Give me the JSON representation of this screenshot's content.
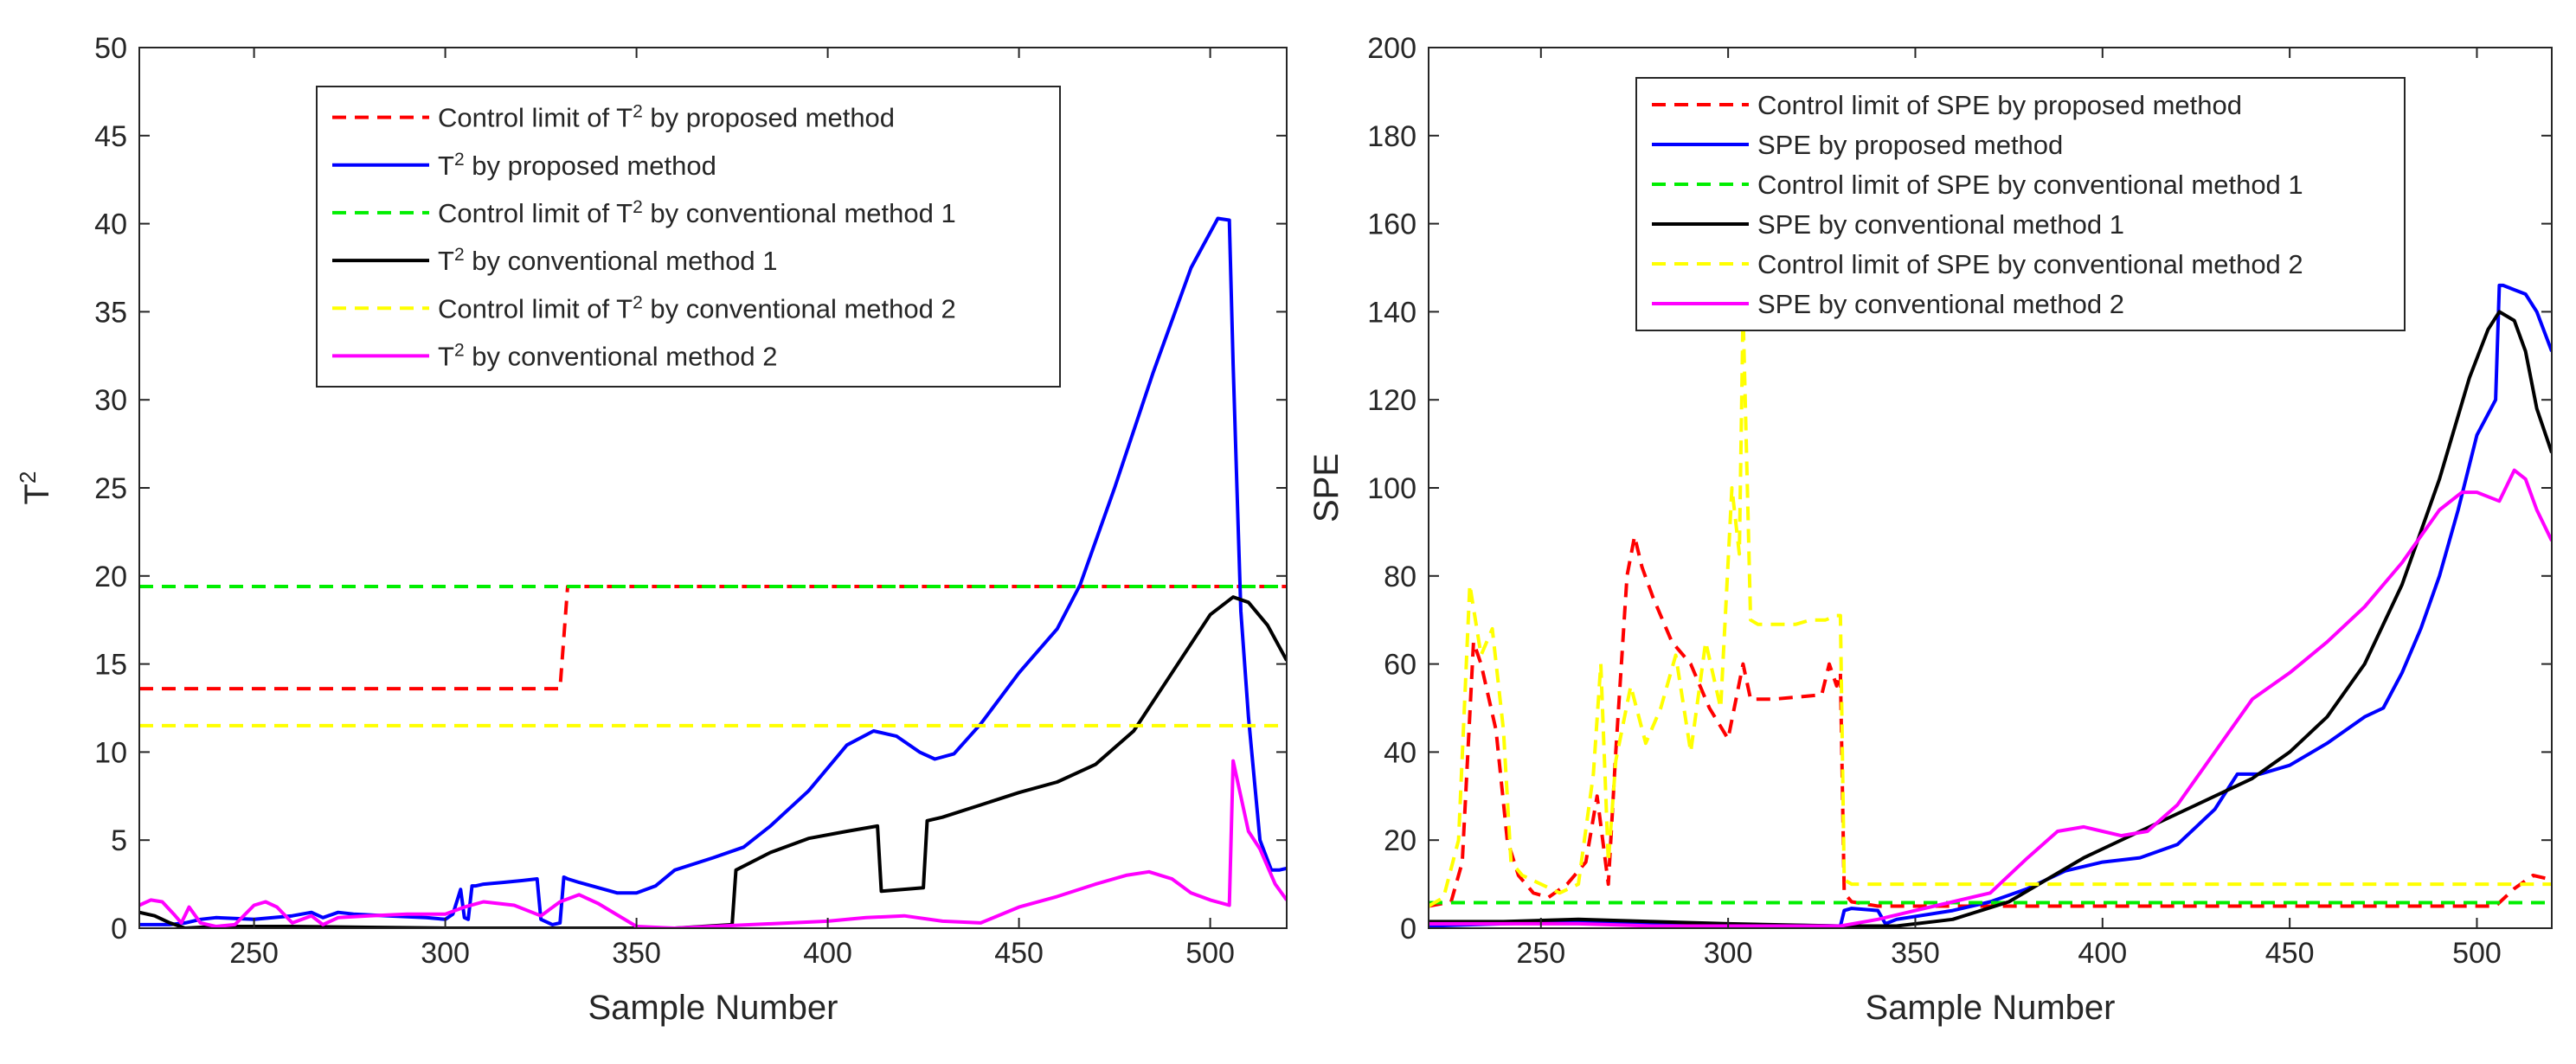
{
  "chart_data": [
    {
      "type": "line",
      "xlabel": "Sample Number",
      "ylabel": "T",
      "ylabel_sup": "2",
      "xlim": [
        220,
        520
      ],
      "ylim": [
        0,
        50
      ],
      "xticks": [
        250,
        300,
        350,
        400,
        450,
        500
      ],
      "yticks": [
        0,
        5,
        10,
        15,
        20,
        25,
        30,
        35,
        40,
        45,
        50
      ],
      "legend_position": "top-center",
      "series": [
        {
          "name": "Control limit of T^2 by proposed method",
          "label_pre": "Control limit of T",
          "label_sup": "2",
          "label_post": " by proposed method",
          "color": "#ff0000",
          "dash": true,
          "x": [
            220,
            330,
            332,
            520
          ],
          "y": [
            13.6,
            13.6,
            19.4,
            19.4
          ]
        },
        {
          "name": "T^2 by proposed method",
          "label_pre": "T",
          "label_sup": "2",
          "label_post": " by proposed method",
          "color": "#0000ff",
          "dash": false,
          "x": [
            220,
            228,
            232,
            236,
            240,
            250,
            260,
            265,
            268,
            272,
            276,
            285,
            295,
            300,
            302,
            304,
            305,
            306,
            307,
            308,
            310,
            315,
            320,
            324,
            325,
            328,
            330,
            331,
            332,
            335,
            340,
            345,
            350,
            355,
            360,
            370,
            378,
            385,
            395,
            405,
            412,
            418,
            424,
            428,
            433,
            440,
            450,
            460,
            466,
            475,
            485,
            495,
            502,
            505,
            506,
            507,
            508,
            510,
            513,
            516,
            518,
            520
          ],
          "y": [
            0.2,
            0.2,
            0.3,
            0.5,
            0.6,
            0.5,
            0.7,
            0.9,
            0.6,
            0.9,
            0.8,
            0.7,
            0.6,
            0.5,
            0.8,
            2.2,
            0.6,
            0.5,
            2.4,
            2.4,
            2.5,
            2.6,
            2.7,
            2.8,
            0.5,
            0.2,
            0.3,
            2.9,
            2.8,
            2.6,
            2.3,
            2.0,
            2.0,
            2.4,
            3.3,
            4.0,
            4.6,
            5.8,
            7.8,
            10.4,
            11.2,
            10.9,
            10.0,
            9.6,
            9.9,
            11.6,
            14.5,
            17.0,
            19.5,
            25.0,
            31.5,
            37.5,
            40.3,
            40.2,
            32.0,
            25.0,
            18.0,
            12.0,
            5.0,
            3.3,
            3.3,
            3.4
          ]
        },
        {
          "name": "Control limit of T^2 by conventional method 1",
          "label_pre": "Control limit of T",
          "label_sup": "2",
          "label_post": " by conventional method 1",
          "color": "#00ee00",
          "dash": true,
          "x": [
            220,
            520
          ],
          "y": [
            19.4,
            19.4
          ]
        },
        {
          "name": "T^2 by conventional method 1",
          "label_pre": "T",
          "label_sup": "2",
          "label_post": " by conventional method 1",
          "color": "#000000",
          "dash": false,
          "x": [
            220,
            224,
            228,
            232,
            236,
            240,
            260,
            280,
            300,
            330,
            360,
            375,
            376,
            385,
            395,
            405,
            413,
            414,
            425,
            426,
            430,
            440,
            450,
            460,
            470,
            480,
            490,
            500,
            506,
            510,
            515,
            520
          ],
          "y": [
            0.9,
            0.7,
            0.3,
            0.0,
            0.05,
            0.1,
            0.1,
            0.05,
            0.0,
            0.0,
            0.0,
            0.2,
            3.3,
            4.3,
            5.1,
            5.5,
            5.8,
            2.1,
            2.3,
            6.1,
            6.3,
            7.0,
            7.7,
            8.3,
            9.3,
            11.2,
            14.5,
            17.8,
            18.8,
            18.5,
            17.2,
            15.2
          ]
        },
        {
          "name": "Control limit of T^2 by conventional method 2",
          "label_pre": "Control limit of T",
          "label_sup": "2",
          "label_post": " by conventional method 2",
          "color": "#ffff00",
          "dash": true,
          "x": [
            220,
            520
          ],
          "y": [
            11.5,
            11.5
          ]
        },
        {
          "name": "T^2 by conventional method 2",
          "label_pre": "T",
          "label_sup": "2",
          "label_post": " by conventional method 2",
          "color": "#ff00ff",
          "dash": false,
          "x": [
            220,
            223,
            226,
            229,
            231,
            233,
            236,
            240,
            245,
            250,
            253,
            256,
            260,
            265,
            268,
            272,
            280,
            290,
            300,
            305,
            310,
            318,
            325,
            330,
            335,
            340,
            350,
            360,
            380,
            400,
            410,
            420,
            430,
            440,
            450,
            460,
            470,
            478,
            484,
            490,
            495,
            500,
            505,
            506,
            507,
            510,
            513,
            517,
            520
          ],
          "y": [
            1.3,
            1.6,
            1.5,
            0.8,
            0.3,
            1.2,
            0.3,
            0.1,
            0.2,
            1.3,
            1.5,
            1.2,
            0.3,
            0.7,
            0.2,
            0.6,
            0.7,
            0.8,
            0.8,
            1.2,
            1.5,
            1.3,
            0.7,
            1.5,
            1.9,
            1.4,
            0.1,
            0.0,
            0.2,
            0.4,
            0.6,
            0.7,
            0.4,
            0.3,
            1.2,
            1.8,
            2.5,
            3.0,
            3.2,
            2.8,
            2.0,
            1.6,
            1.3,
            9.5,
            8.5,
            5.5,
            4.5,
            2.5,
            1.6
          ]
        }
      ]
    },
    {
      "type": "line",
      "xlabel": "Sample Number",
      "ylabel": "SPE",
      "ylabel_sup": "",
      "xlim": [
        220,
        520
      ],
      "ylim": [
        0,
        200
      ],
      "xticks": [
        250,
        300,
        350,
        400,
        450,
        500
      ],
      "yticks": [
        0,
        20,
        40,
        60,
        80,
        100,
        120,
        140,
        160,
        180,
        200
      ],
      "legend_position": "top-center",
      "series": [
        {
          "name": "Control limit of SPE by proposed method",
          "label_pre": "Control limit of SPE by proposed method",
          "label_sup": "",
          "label_post": "",
          "color": "#ff0000",
          "dash": true,
          "x": [
            220,
            226,
            229,
            232,
            234,
            238,
            241,
            244,
            248,
            252,
            257,
            262,
            265,
            268,
            270,
            273,
            275,
            277,
            280,
            285,
            290,
            295,
            300,
            304,
            306,
            308,
            312,
            325,
            327,
            329,
            330,
            331,
            333,
            340,
            360,
            400,
            450,
            505,
            510,
            515,
            520
          ],
          "y": [
            5,
            6,
            15,
            65,
            60,
            45,
            20,
            12,
            8,
            7,
            10,
            15,
            30,
            10,
            40,
            80,
            89,
            82,
            75,
            65,
            60,
            50,
            43,
            60,
            52,
            52,
            52,
            53,
            60,
            55,
            58,
            8,
            6,
            5,
            5,
            5,
            5,
            5,
            9,
            12,
            11
          ]
        },
        {
          "name": "SPE by proposed method",
          "label_pre": "SPE by proposed method",
          "label_sup": "",
          "label_post": "",
          "color": "#0000ff",
          "dash": false,
          "x": [
            220,
            240,
            260,
            280,
            300,
            320,
            330,
            331,
            333,
            340,
            342,
            345,
            360,
            370,
            380,
            390,
            400,
            410,
            420,
            430,
            436,
            442,
            450,
            460,
            470,
            475,
            480,
            485,
            490,
            495,
            500,
            505,
            506,
            507,
            510,
            513,
            516,
            520
          ],
          "y": [
            0.5,
            1,
            1.5,
            1,
            0.8,
            0.6,
            0.5,
            4,
            4.5,
            4,
            1,
            2,
            4,
            6,
            9,
            13,
            15,
            16,
            19,
            27,
            35,
            35,
            37,
            42,
            48,
            50,
            58,
            68,
            80,
            95,
            112,
            120,
            146,
            146,
            145,
            144,
            140,
            131
          ]
        },
        {
          "name": "Control limit of SPE by conventional method 1",
          "label_pre": "Control limit of SPE by conventional method 1",
          "label_sup": "",
          "label_post": "",
          "color": "#00ee00",
          "dash": true,
          "x": [
            220,
            520
          ],
          "y": [
            5.8,
            5.8
          ]
        },
        {
          "name": "SPE by conventional method 1",
          "label_pre": "SPE by conventional method 1",
          "label_sup": "",
          "label_post": "",
          "color": "#000000",
          "dash": false,
          "x": [
            220,
            240,
            260,
            280,
            300,
            330,
            345,
            360,
            375,
            385,
            395,
            410,
            425,
            440,
            450,
            460,
            470,
            480,
            490,
            498,
            503,
            506,
            510,
            513,
            516,
            520
          ],
          "y": [
            1.5,
            1.5,
            2,
            1.5,
            1,
            0.5,
            0.5,
            2,
            6,
            11,
            16,
            22,
            28,
            34,
            40,
            48,
            60,
            78,
            102,
            125,
            136,
            140,
            138,
            131,
            118,
            108
          ]
        },
        {
          "name": "Control limit of SPE by conventional method 2",
          "label_pre": "Control limit of SPE by conventional method 2",
          "label_sup": "",
          "label_post": "",
          "color": "#ffff00",
          "dash": true,
          "x": [
            220,
            224,
            228,
            231,
            234,
            237,
            240,
            242,
            245,
            250,
            255,
            260,
            264,
            266,
            268,
            270,
            274,
            278,
            282,
            286,
            290,
            294,
            298,
            301,
            303,
            304,
            306,
            308,
            312,
            318,
            322,
            326,
            329,
            330,
            331,
            333,
            340,
            400,
            450,
            500,
            505,
            510,
            515,
            520
          ],
          "y": [
            5,
            7,
            20,
            78,
            62,
            68,
            45,
            15,
            12,
            10,
            8,
            10,
            35,
            60,
            15,
            38,
            55,
            42,
            50,
            62,
            40,
            65,
            50,
            100,
            85,
            140,
            70,
            69,
            69,
            69,
            70,
            70,
            71,
            71,
            11,
            10,
            10,
            10,
            10,
            10,
            10,
            10,
            10,
            10
          ]
        },
        {
          "name": "SPE by conventional method 2",
          "label_pre": "SPE by conventional method 2",
          "label_sup": "",
          "label_post": "",
          "color": "#ff00ff",
          "dash": false,
          "x": [
            220,
            240,
            260,
            280,
            300,
            330,
            340,
            350,
            360,
            370,
            380,
            388,
            395,
            400,
            405,
            412,
            420,
            430,
            440,
            450,
            460,
            470,
            480,
            490,
            496,
            500,
            503,
            506,
            510,
            513,
            516,
            520
          ],
          "y": [
            1,
            1,
            1,
            0.5,
            0.5,
            0.5,
            2,
            4,
            6,
            8,
            16,
            22,
            23,
            22,
            21,
            22,
            28,
            40,
            52,
            58,
            65,
            73,
            83,
            95,
            99,
            99,
            98,
            97,
            104,
            102,
            95,
            88
          ]
        }
      ]
    }
  ]
}
